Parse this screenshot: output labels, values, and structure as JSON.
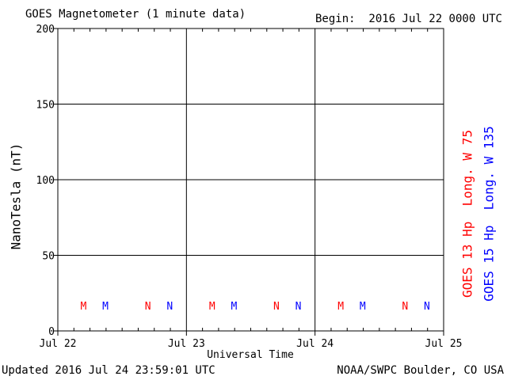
{
  "header": {
    "title": "GOES Magnetometer (1 minute data)",
    "begin": "Begin:  2016 Jul 22 0000 UTC"
  },
  "footer": {
    "updated": "Updated 2016 Jul 24 23:59:01 UTC",
    "source": "NOAA/SWPC Boulder, CO USA"
  },
  "colors": {
    "goes13": "#ff0000",
    "goes15": "#0000ff",
    "axis": "#000000",
    "background": "#ffffff"
  },
  "chart_data": {
    "type": "line",
    "title": "GOES Magnetometer (1 minute data)",
    "xlabel": "Universal Time",
    "ylabel": "NanoTesla (nT)",
    "ylim": [
      0,
      200
    ],
    "yticks": [
      0,
      50,
      100,
      150,
      200
    ],
    "xlim": [
      "2016-07-22",
      "2016-07-25"
    ],
    "xtick_labels": [
      "Jul 22",
      "Jul 23",
      "Jul 24",
      "Jul 25"
    ],
    "grid": true,
    "series": [
      {
        "name": "GOES 13 Hp  Long. W 75",
        "color": "#ff0000",
        "values": []
      },
      {
        "name": "GOES 15 Hp  Long. W 135",
        "color": "#0000ff",
        "values": []
      }
    ],
    "markers": [
      {
        "label": "M",
        "day": 0.2,
        "series": 0
      },
      {
        "label": "M",
        "day": 0.37,
        "series": 1
      },
      {
        "label": "N",
        "day": 0.7,
        "series": 0
      },
      {
        "label": "N",
        "day": 0.87,
        "series": 1
      },
      {
        "label": "M",
        "day": 1.2,
        "series": 0
      },
      {
        "label": "M",
        "day": 1.37,
        "series": 1
      },
      {
        "label": "N",
        "day": 1.7,
        "series": 0
      },
      {
        "label": "N",
        "day": 1.87,
        "series": 1
      },
      {
        "label": "M",
        "day": 2.2,
        "series": 0
      },
      {
        "label": "M",
        "day": 2.37,
        "series": 1
      },
      {
        "label": "N",
        "day": 2.7,
        "series": 0
      },
      {
        "label": "N",
        "day": 2.87,
        "series": 1
      }
    ]
  }
}
